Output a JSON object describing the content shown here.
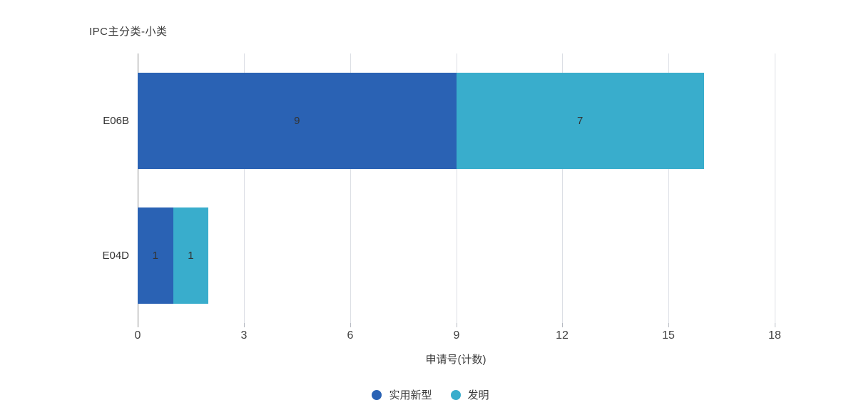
{
  "chart_data": {
    "type": "bar",
    "orientation": "horizontal",
    "stacked": true,
    "title": "IPC主分类-小类",
    "categories": [
      "E06B",
      "E04D"
    ],
    "series": [
      {
        "name": "实用新型",
        "color": "#2a62b4",
        "values": [
          9,
          1
        ]
      },
      {
        "name": "发明",
        "color": "#39adcc",
        "values": [
          7,
          1
        ]
      }
    ],
    "xlabel": "申请号(计数)",
    "x_ticks": [
      0,
      3,
      6,
      9,
      12,
      15,
      18
    ],
    "xlim": [
      0,
      18
    ],
    "grid": true,
    "legend_position": "bottom",
    "colors": {
      "axis_line": "#8c8c8c",
      "gridline": "#dcdfe5",
      "label_text": "#333333",
      "background": "#ffffff"
    }
  }
}
